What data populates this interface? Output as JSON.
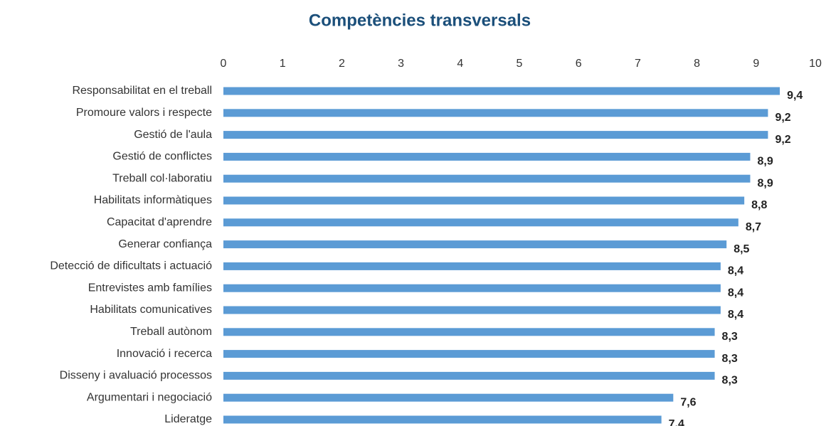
{
  "chart_data": {
    "type": "bar",
    "orientation": "horizontal",
    "title": "Competències transversals",
    "categories": [
      "Responsabilitat en el treball",
      "Promoure valors i respecte",
      "Gestió de l'aula",
      "Gestió de conflictes",
      "Treball col·laboratiu",
      "Habilitats informàtiques",
      "Capacitat d'aprendre",
      "Generar confiança",
      "Detecció de dificultats i actuació",
      "Entrevistes amb famílies",
      "Habilitats comunicatives",
      "Treball autònom",
      "Innovació i recerca",
      "Disseny i avaluació processos",
      "Argumentari i negociació",
      "Lideratge"
    ],
    "values": [
      9.4,
      9.2,
      9.2,
      8.9,
      8.9,
      8.8,
      8.7,
      8.5,
      8.4,
      8.4,
      8.4,
      8.3,
      8.3,
      8.3,
      7.6,
      7.4
    ],
    "value_labels": [
      "9,4",
      "9,2",
      "9,2",
      "8,9",
      "8,9",
      "8,8",
      "8,7",
      "8,5",
      "8,4",
      "8,4",
      "8,4",
      "8,3",
      "8,3",
      "8,3",
      "7,6",
      "7,4"
    ],
    "color": "#5b9bd5",
    "xlim": [
      0,
      10
    ],
    "xticks": [
      0,
      1,
      2,
      3,
      4,
      5,
      6,
      7,
      8,
      9,
      10
    ],
    "grid": false
  }
}
